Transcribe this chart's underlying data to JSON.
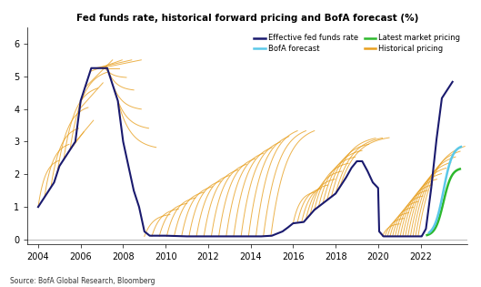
{
  "title": "Fed funds rate, historical forward pricing and BofA forecast (%)",
  "source": "Source: BofA Global Research, Bloomberg",
  "background_color": "#ffffff",
  "plot_bg_color": "#ffffff",
  "effective_color": "#1a1a6e",
  "bofa_color": "#5bc8e8",
  "market_color": "#2db82d",
  "historical_color": "#e8a020",
  "xlim": [
    2003.5,
    2024.2
  ],
  "ylim": [
    -0.15,
    6.5
  ],
  "yticks": [
    0,
    1,
    2,
    3,
    4,
    5,
    6
  ],
  "xticks": [
    2004,
    2006,
    2008,
    2010,
    2012,
    2014,
    2016,
    2018,
    2020,
    2022
  ]
}
